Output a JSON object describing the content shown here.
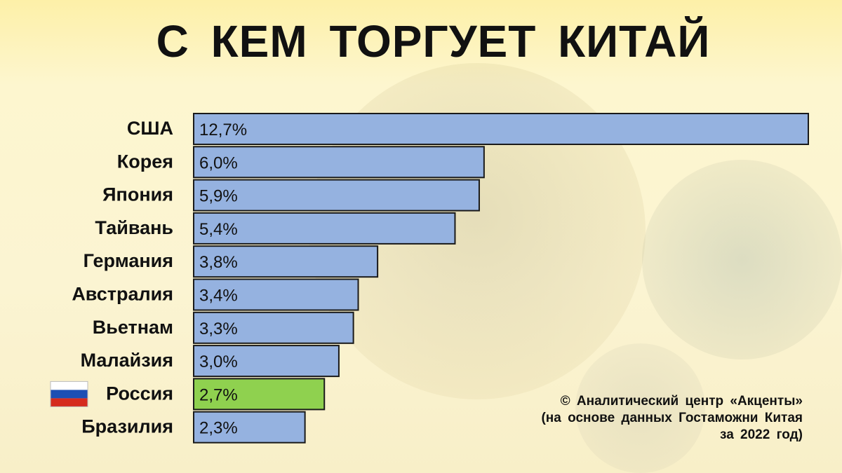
{
  "title": "С КЕМ ТОРГУЕТ КИТАЙ",
  "credit": {
    "line1": "© Аналитический центр «Акценты»",
    "line2": "(на основе данных Гостаможни Китая",
    "line3": "за 2022 год)"
  },
  "colors": {
    "bar": "#95b2e0",
    "highlight": "#8fd14f",
    "border": "#1a1a1a"
  },
  "chart_data": {
    "type": "bar",
    "orientation": "horizontal",
    "categories": [
      "США",
      "Корея",
      "Япония",
      "Тайвань",
      "Германия",
      "Австралия",
      "Вьетнам",
      "Малайзия",
      "Россия",
      "Бразилия"
    ],
    "values": [
      12.7,
      6.0,
      5.9,
      5.4,
      3.8,
      3.4,
      3.3,
      3.0,
      2.7,
      2.3
    ],
    "value_labels": [
      "12,7%",
      "6,0%",
      "5,9%",
      "5,4%",
      "3,8%",
      "3,4%",
      "3,3%",
      "3,0%",
      "2,7%",
      "2,3%"
    ],
    "highlighted_category": "Россия",
    "flag_icon_category": "Россия",
    "unit": "%",
    "xlim": [
      0,
      12.7
    ],
    "grid": false,
    "legend": "none"
  }
}
